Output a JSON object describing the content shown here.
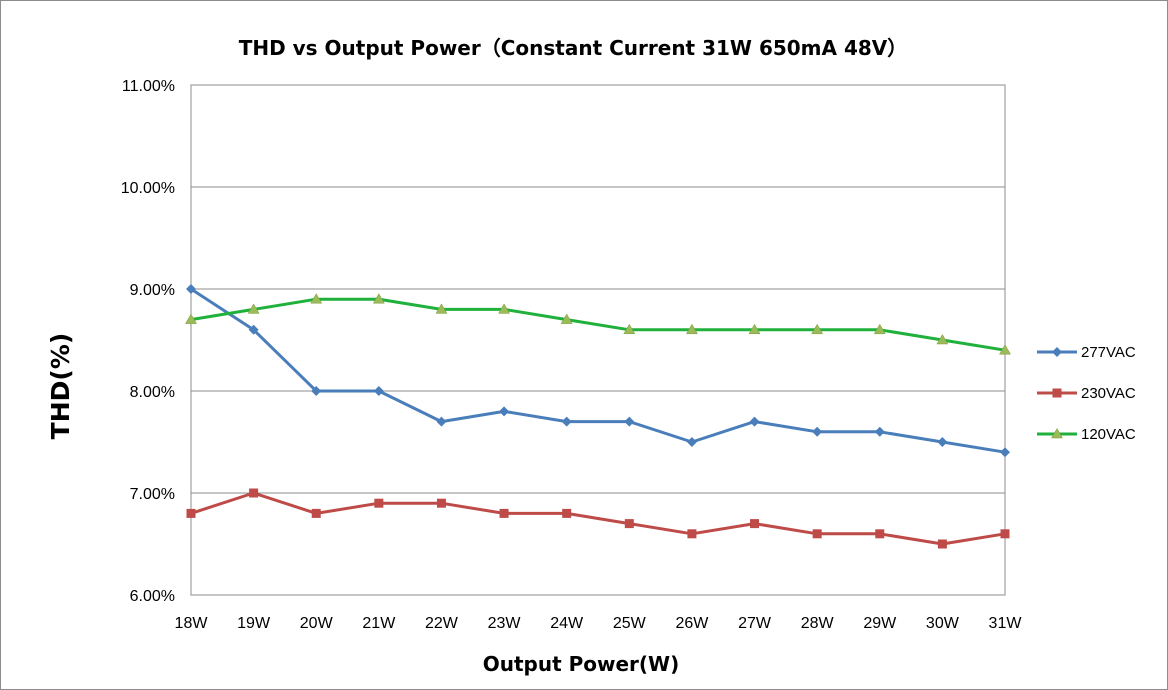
{
  "chart_data": {
    "type": "line",
    "title": "THD vs Output Power（Constant Current 31W  650mA 48V）",
    "xlabel": "Output Power(W)",
    "ylabel": "THD(%)",
    "categories": [
      "18W",
      "19W",
      "20W",
      "21W",
      "22W",
      "23W",
      "24W",
      "25W",
      "26W",
      "27W",
      "28W",
      "29W",
      "30W",
      "31W"
    ],
    "ylim": [
      6.0,
      11.0
    ],
    "yticks": [
      6.0,
      7.0,
      8.0,
      9.0,
      10.0,
      11.0
    ],
    "ytick_labels": [
      "6.00%",
      "7.00%",
      "8.00%",
      "9.00%",
      "10.00%",
      "11.00%"
    ],
    "grid": "horizontal",
    "legend_position": "right",
    "series": [
      {
        "name": "277VAC",
        "color": "#4a7ebb",
        "marker": "diamond",
        "values": [
          9.0,
          8.6,
          8.0,
          8.0,
          7.7,
          7.8,
          7.7,
          7.7,
          7.5,
          7.7,
          7.6,
          7.6,
          7.5,
          7.4
        ]
      },
      {
        "name": "230VAC",
        "color": "#be4b48",
        "marker": "square",
        "values": [
          6.8,
          7.0,
          6.8,
          6.9,
          6.9,
          6.8,
          6.8,
          6.7,
          6.6,
          6.7,
          6.6,
          6.6,
          6.5,
          6.6
        ]
      },
      {
        "name": "120VAC",
        "color": "#1fb13b",
        "marker": "triangle",
        "values": [
          8.7,
          8.8,
          8.9,
          8.9,
          8.8,
          8.8,
          8.7,
          8.6,
          8.6,
          8.6,
          8.6,
          8.6,
          8.5,
          8.4
        ]
      }
    ]
  }
}
